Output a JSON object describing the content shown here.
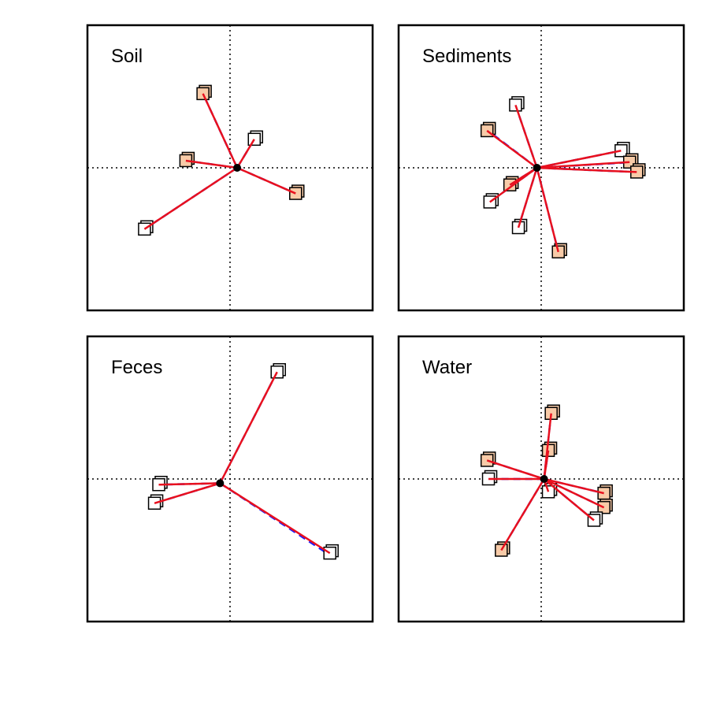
{
  "colors": {
    "frame": "#000000",
    "axis_lines": "#000000",
    "red_segments": "#e8101e",
    "blue_segments": "#1a1aff",
    "filled_square": "#f8cba8",
    "open_square": "#ffffff"
  },
  "chart_data": [
    {
      "type": "scatter",
      "title": "Soil",
      "xlim": [
        -5,
        5
      ],
      "ylim": [
        -5,
        5
      ],
      "grid": false,
      "reference_lines": [
        0,
        0
      ],
      "centroid": [
        0.25,
        0.0
      ],
      "points": [
        {
          "x": -0.95,
          "y": 2.6,
          "fill": "filled",
          "blue_end": [
            -0.95,
            2.6
          ]
        },
        {
          "x": 0.85,
          "y": 1.0,
          "fill": "open",
          "blue_end": [
            0.85,
            1.0
          ]
        },
        {
          "x": -1.55,
          "y": 0.25,
          "fill": "filled",
          "blue_end": [
            -1.55,
            0.25
          ]
        },
        {
          "x": 2.3,
          "y": -0.9,
          "fill": "filled",
          "blue_end": [
            2.3,
            -0.9
          ]
        },
        {
          "x": -3.0,
          "y": -2.15,
          "fill": "open",
          "blue_end": [
            -3.0,
            -2.15
          ]
        }
      ]
    },
    {
      "type": "scatter",
      "title": "Sediments",
      "xlim": [
        -5,
        5
      ],
      "ylim": [
        -5,
        5
      ],
      "grid": false,
      "reference_lines": [
        0,
        0
      ],
      "centroid": [
        -0.15,
        0.0
      ],
      "points": [
        {
          "x": -0.9,
          "y": 2.2,
          "fill": "open",
          "blue_end": [
            -0.9,
            2.2
          ]
        },
        {
          "x": -1.9,
          "y": 1.3,
          "fill": "filled",
          "blue_end": [
            -2.0,
            1.4
          ]
        },
        {
          "x": 2.8,
          "y": 0.6,
          "fill": "open",
          "blue_end": [
            2.8,
            0.6
          ]
        },
        {
          "x": 3.1,
          "y": 0.2,
          "fill": "filled",
          "blue_end": [
            3.3,
            0.2
          ]
        },
        {
          "x": 3.35,
          "y": -0.15,
          "fill": "filled",
          "blue_end": [
            3.35,
            -0.15
          ]
        },
        {
          "x": -1.1,
          "y": -0.6,
          "fill": "filled",
          "blue_end": [
            -1.1,
            -0.6
          ]
        },
        {
          "x": -1.8,
          "y": -1.2,
          "fill": "open",
          "blue_end": [
            -1.8,
            -1.2
          ]
        },
        {
          "x": -0.8,
          "y": -2.1,
          "fill": "open",
          "blue_end": [
            -0.8,
            -2.1
          ]
        },
        {
          "x": 0.6,
          "y": -2.95,
          "fill": "filled",
          "blue_end": [
            0.6,
            -2.95
          ]
        }
      ]
    },
    {
      "type": "scatter",
      "title": "Feces",
      "xlim": [
        -5,
        5
      ],
      "ylim": [
        -5,
        5
      ],
      "grid": false,
      "reference_lines": [
        0,
        0
      ],
      "centroid": [
        -0.35,
        -0.15
      ],
      "points": [
        {
          "x": 1.65,
          "y": 3.75,
          "fill": "open",
          "blue_end": [
            1.65,
            3.75
          ]
        },
        {
          "x": -2.5,
          "y": -0.2,
          "fill": "open",
          "blue_end": [
            -2.5,
            -0.2
          ]
        },
        {
          "x": -2.65,
          "y": -0.85,
          "fill": "open",
          "blue_end": [
            -2.65,
            -0.85
          ]
        },
        {
          "x": 3.5,
          "y": -2.6,
          "fill": "open",
          "blue_end": [
            3.55,
            -2.7
          ]
        }
      ]
    },
    {
      "type": "scatter",
      "title": "Water",
      "xlim": [
        -5,
        5
      ],
      "ylim": [
        -5,
        5
      ],
      "grid": false,
      "reference_lines": [
        0,
        0
      ],
      "centroid": [
        0.1,
        0.0
      ],
      "points": [
        {
          "x": 0.35,
          "y": 2.3,
          "fill": "filled",
          "blue_end": [
            0.35,
            2.3
          ]
        },
        {
          "x": 0.25,
          "y": 1.0,
          "fill": "filled",
          "blue_end": [
            0.25,
            1.0
          ]
        },
        {
          "x": -1.9,
          "y": 0.65,
          "fill": "filled",
          "blue_end": [
            -1.9,
            0.65
          ]
        },
        {
          "x": -1.85,
          "y": 0.0,
          "fill": "open",
          "blue_end": [
            -1.85,
            0.0
          ]
        },
        {
          "x": 2.2,
          "y": -0.5,
          "fill": "filled",
          "blue_end": [
            2.2,
            -0.5
          ]
        },
        {
          "x": 2.2,
          "y": -1.0,
          "fill": "filled",
          "blue_end": [
            2.2,
            -1.0
          ]
        },
        {
          "x": 1.85,
          "y": -1.45,
          "fill": "open",
          "blue_end": [
            1.85,
            -1.45
          ]
        },
        {
          "x": 0.25,
          "y": -0.45,
          "fill": "open",
          "blue_end": [
            0.25,
            -0.45
          ]
        },
        {
          "x": -1.4,
          "y": -2.5,
          "fill": "filled",
          "blue_end": [
            -1.4,
            -2.5
          ]
        }
      ]
    }
  ]
}
